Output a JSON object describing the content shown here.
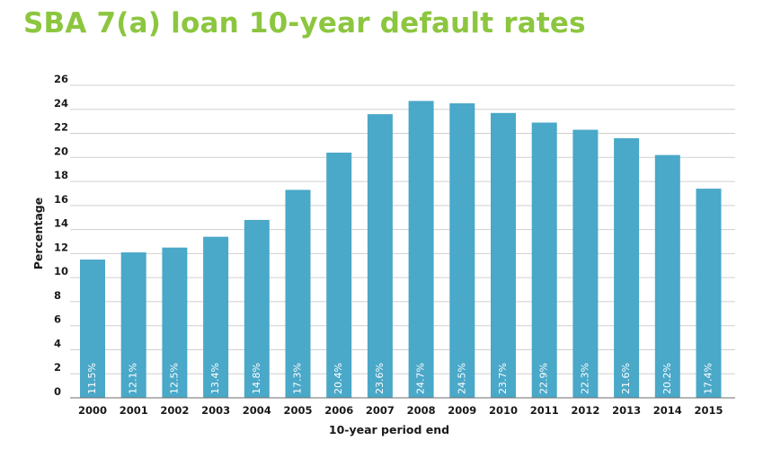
{
  "chart_data": {
    "type": "bar",
    "title": "SBA 7(a) loan 10-year default rates",
    "xlabel": "10-year period end",
    "ylabel": "Percentage",
    "ylim": [
      0,
      26
    ],
    "yticks": [
      0,
      2,
      4,
      6,
      8,
      10,
      12,
      14,
      16,
      18,
      20,
      22,
      24,
      26
    ],
    "grid": true,
    "categories": [
      "2000",
      "2001",
      "2002",
      "2003",
      "2004",
      "2005",
      "2006",
      "2007",
      "2008",
      "2009",
      "2010",
      "2011",
      "2012",
      "2013",
      "2014",
      "2015"
    ],
    "values": [
      11.5,
      12.1,
      12.5,
      13.4,
      14.8,
      17.3,
      20.4,
      23.6,
      24.7,
      24.5,
      23.7,
      22.9,
      22.3,
      21.6,
      20.2,
      17.4
    ],
    "data_labels": [
      "11.5%",
      "12.1%",
      "12.5%",
      "13.4%",
      "14.8%",
      "17.3%",
      "20.4%",
      "23.6%",
      "24.7%",
      "24.5%",
      "23.7%",
      "22.9%",
      "22.3%",
      "21.6%",
      "20.2%",
      "17.4%"
    ],
    "bar_color": "#4aa8c8",
    "title_color": "#8cc63f"
  }
}
